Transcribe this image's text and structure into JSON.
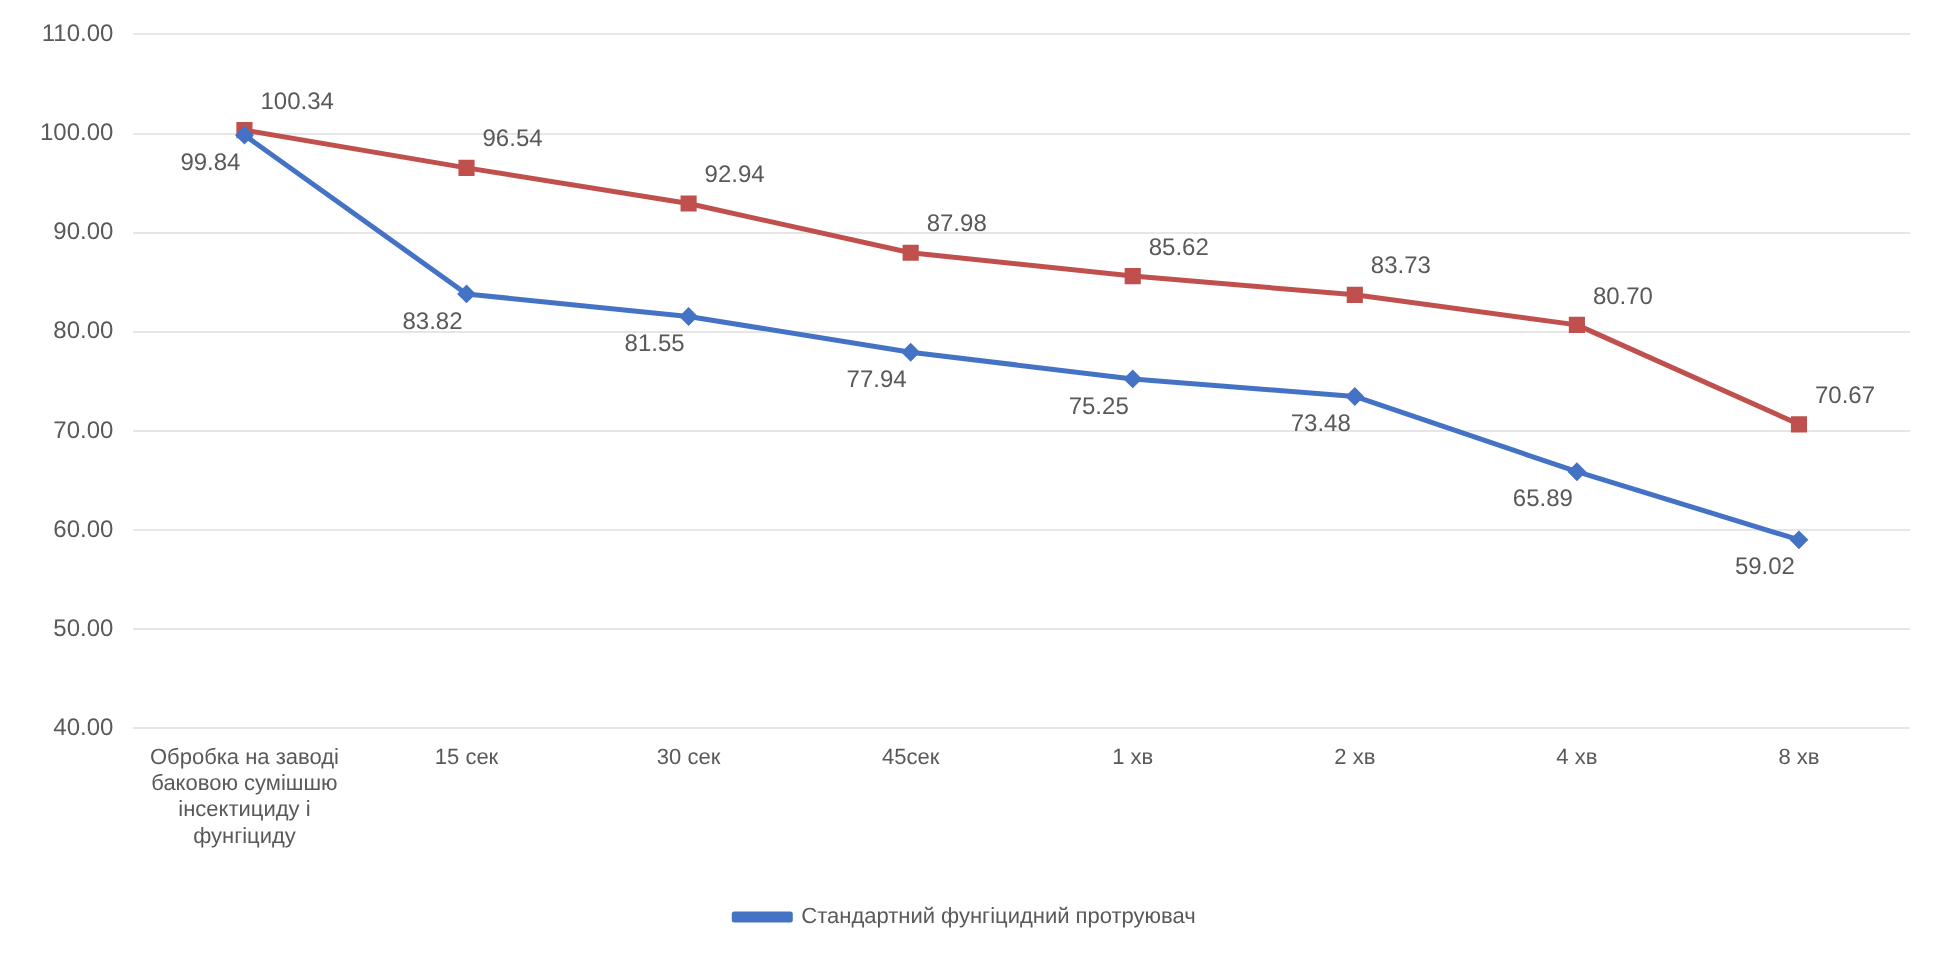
{
  "chart_data": {
    "type": "line",
    "categories": [
      "Обробка на заводі баковою сумішшю інсектициду і фунгіциду",
      "15 сек",
      "30 сек",
      "45сек",
      "1 хв",
      "2 хв",
      "4 хв",
      "8 хв"
    ],
    "series": [
      {
        "name": "Стандартний фунгіцидний протруювач",
        "color": "#4472c4",
        "marker": "diamond",
        "values": [
          99.84,
          83.82,
          81.55,
          77.94,
          75.25,
          73.48,
          65.89,
          59.02
        ],
        "value_labels": [
          "99.84",
          "83.82",
          "81.55",
          "77.94",
          "75.25",
          "73.48",
          "65.89",
          "59.02"
        ]
      },
      {
        "color": "#c0504d",
        "marker": "square",
        "values": [
          100.34,
          96.54,
          92.94,
          87.98,
          85.62,
          83.73,
          80.7,
          70.67
        ],
        "value_labels": [
          "100.34",
          "96.54",
          "92.94",
          "87.98",
          "85.62",
          "83.73",
          "80.70",
          "70.67"
        ]
      }
    ],
    "ylim": [
      40,
      110
    ],
    "yticks": [
      {
        "value": 40,
        "label": "40.00"
      },
      {
        "value": 50,
        "label": "50.00"
      },
      {
        "value": 60,
        "label": "60.00"
      },
      {
        "value": 70,
        "label": "70.00"
      },
      {
        "value": 80,
        "label": "80.00"
      },
      {
        "value": 90,
        "label": "90.00"
      },
      {
        "value": 100,
        "label": "100.00"
      },
      {
        "value": 110,
        "label": "110.00"
      }
    ],
    "grid": "y",
    "legend": "bottom",
    "line_style": "solid"
  }
}
